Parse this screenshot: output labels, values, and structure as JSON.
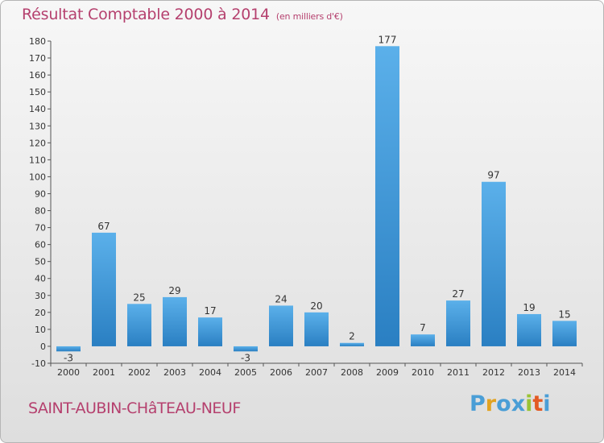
{
  "header": {
    "title": "Résultat Comptable 2000 à 2014",
    "unit": "(en milliers d'€)"
  },
  "footer": {
    "commune": "SAINT-AUBIN-CHâTEAU-NEUF",
    "logo_letters": [
      "P",
      "r",
      "o",
      "x",
      "i",
      "t",
      "i"
    ],
    "logo_colors": [
      "#4a9ed6",
      "#e2a321",
      "#4a9ed6",
      "#4a9ed6",
      "#9ac335",
      "#e35a24",
      "#4a9ed6"
    ]
  },
  "colors": {
    "bar_light": "#5bb0ea",
    "bar_dark": "#2a7fc2",
    "title": "#b5406e"
  },
  "chart_data": {
    "type": "bar",
    "title": "Résultat Comptable 2000 à 2014",
    "xlabel": "",
    "ylabel": "",
    "categories": [
      "2000",
      "2001",
      "2002",
      "2003",
      "2004",
      "2005",
      "2006",
      "2007",
      "2008",
      "2009",
      "2010",
      "2011",
      "2012",
      "2013",
      "2014"
    ],
    "values": [
      -3,
      67,
      25,
      29,
      17,
      -3,
      24,
      20,
      2,
      177,
      7,
      27,
      97,
      19,
      15
    ],
    "ylim": [
      -10,
      180
    ],
    "yticks": [
      -10,
      0,
      10,
      20,
      30,
      40,
      50,
      60,
      70,
      80,
      90,
      100,
      110,
      120,
      130,
      140,
      150,
      160,
      170,
      180
    ],
    "grid": false,
    "legend": "none"
  }
}
